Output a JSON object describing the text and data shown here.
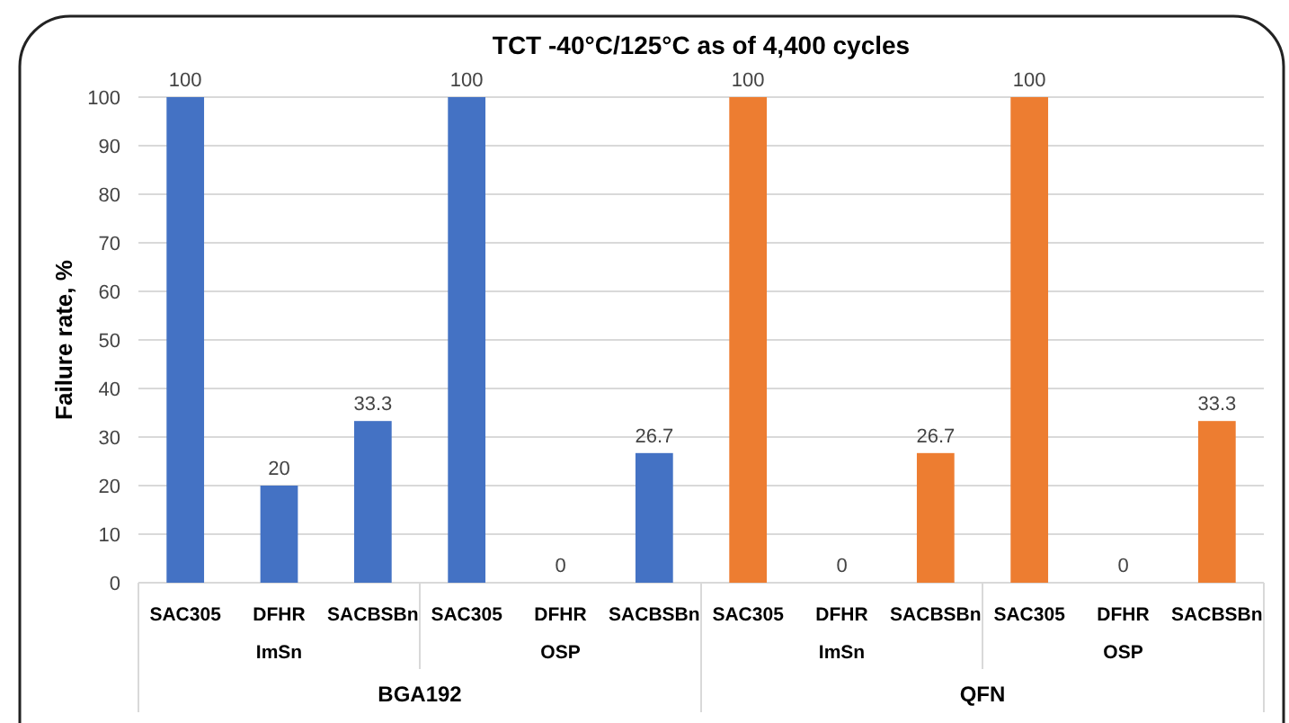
{
  "chart_data": {
    "type": "bar",
    "title": "TCT -40°C/125°C as of 4,400 cycles",
    "ylabel": "Failure rate, %",
    "categories": [
      "SAC305",
      "DFHR",
      "SACBSBn",
      "SAC305",
      "DFHR",
      "SACBSBn",
      "SAC305",
      "DFHR",
      "SACBSBn",
      "SAC305",
      "DFHR",
      "SACBSBn"
    ],
    "values": [
      100,
      20,
      33.3,
      100,
      0,
      26.7,
      100,
      0,
      26.7,
      100,
      0,
      33.3
    ],
    "colors": [
      "#4472c4",
      "#4472c4",
      "#4472c4",
      "#4472c4",
      "#4472c4",
      "#4472c4",
      "#ed7d31",
      "#ed7d31",
      "#ed7d31",
      "#ed7d31",
      "#ed7d31",
      "#ed7d31"
    ],
    "ylim": [
      0,
      100
    ],
    "yticks": [
      0,
      10,
      20,
      30,
      40,
      50,
      60,
      70,
      80,
      90,
      100
    ],
    "grid": "y",
    "data_labels": true,
    "annotations": [
      "ImSn",
      "OSP",
      "ImSn",
      "OSP",
      "BGA192",
      "QFN"
    ]
  }
}
